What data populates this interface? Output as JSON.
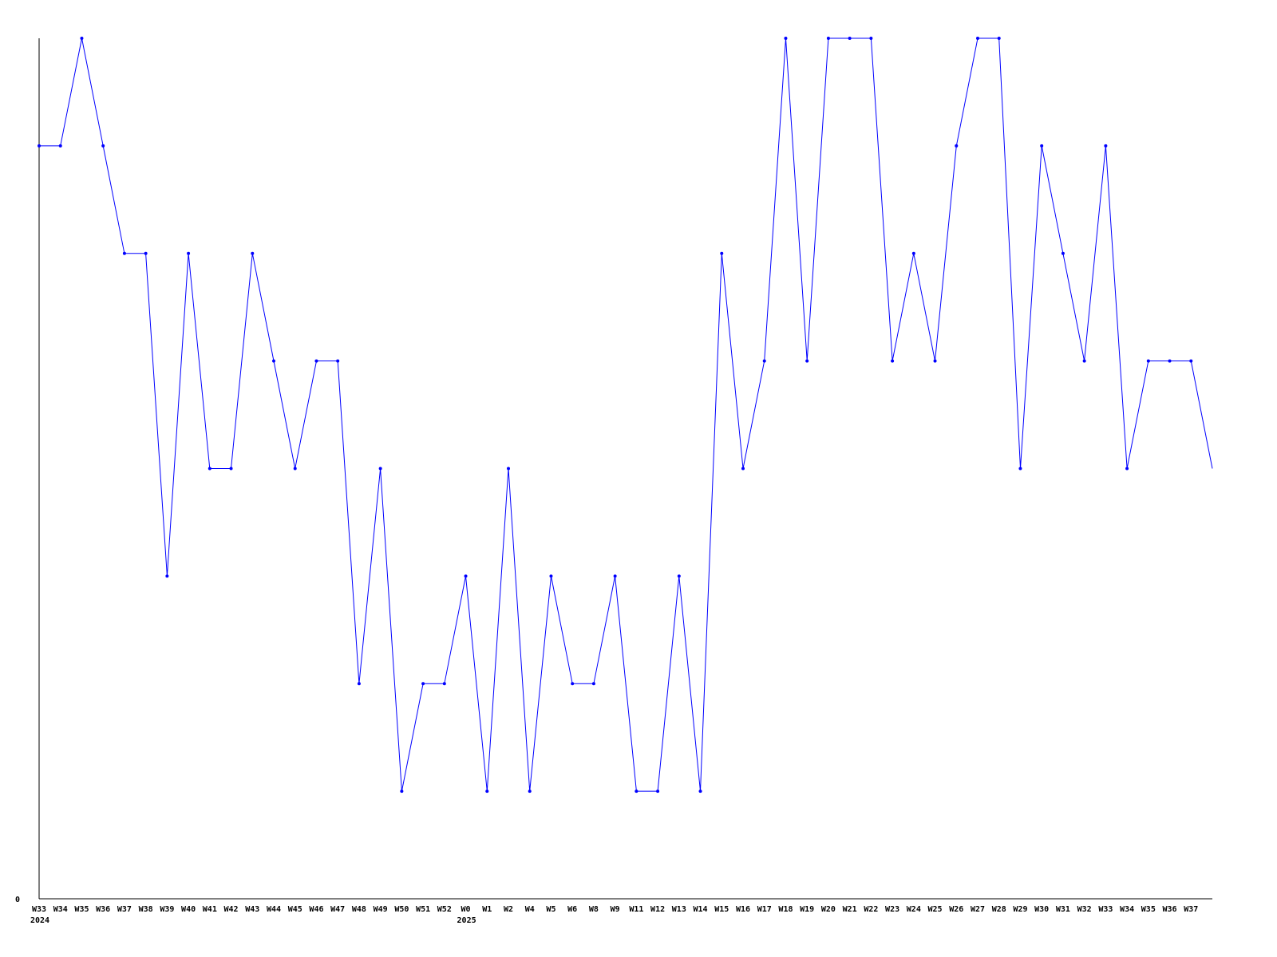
{
  "chart_data": {
    "type": "line",
    "title": "",
    "xlabel": "",
    "ylabel": "",
    "y_tick_labels": [
      "0"
    ],
    "ylim": [
      0,
      8
    ],
    "grid": false,
    "line_color": "#0000ff",
    "x": [
      "W33",
      "W34",
      "W35",
      "W36",
      "W37",
      "W38",
      "W39",
      "W40",
      "W41",
      "W42",
      "W43",
      "W44",
      "W45",
      "W46",
      "W47",
      "W48",
      "W49",
      "W50",
      "W51",
      "W52",
      "W0",
      "W1",
      "W2",
      "W4",
      "W5",
      "W6",
      "W8",
      "W9",
      "W11",
      "W12",
      "W13",
      "W14",
      "W15",
      "W16",
      "W17",
      "W18",
      "W19",
      "W20",
      "W21",
      "W22",
      "W23",
      "W24",
      "W25",
      "W26",
      "W27",
      "W28",
      "W29",
      "W30",
      "W31",
      "W32",
      "W33",
      "W34",
      "W35",
      "W36",
      "W37",
      ""
    ],
    "year_labels": [
      {
        "index": 0,
        "label": "2024"
      },
      {
        "index": 20,
        "label": "2025"
      }
    ],
    "values": [
      7,
      7,
      8,
      7,
      6,
      6,
      3,
      6,
      4,
      4,
      6,
      5,
      4,
      5,
      5,
      2,
      4,
      1,
      2,
      2,
      3,
      1,
      4,
      1,
      3,
      2,
      2,
      3,
      1,
      1,
      3,
      1,
      6,
      4,
      5,
      8,
      5,
      8,
      8,
      8,
      5,
      6,
      5,
      7,
      8,
      8,
      4,
      7,
      6,
      5,
      7,
      4,
      5,
      5,
      5,
      4
    ]
  }
}
